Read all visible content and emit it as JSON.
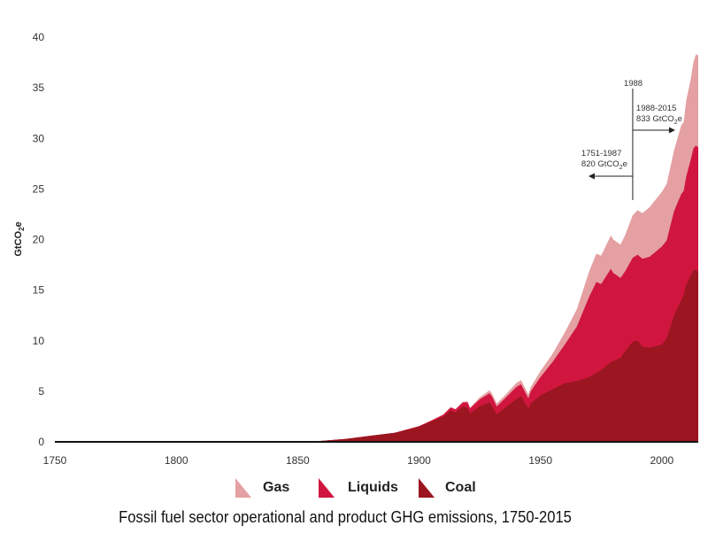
{
  "chart_data": {
    "type": "area",
    "stacked": true,
    "title": "Fossil fuel sector operational and product GHG emissions, 1750-2015",
    "xlabel": "",
    "ylabel": "GtCO2e",
    "ylabel_parts": {
      "base": "GtCO",
      "sub": "2",
      "tail": "e"
    },
    "xlim": [
      1750,
      2015
    ],
    "ylim": [
      0,
      40
    ],
    "xticks": [
      1750,
      1800,
      1850,
      1900,
      1950,
      2000
    ],
    "yticks": [
      0,
      5,
      10,
      15,
      20,
      25,
      30,
      35,
      40
    ],
    "grid": false,
    "legend_position": "bottom",
    "x": [
      1750,
      1800,
      1850,
      1860,
      1870,
      1880,
      1890,
      1900,
      1905,
      1910,
      1913,
      1915,
      1918,
      1920,
      1921,
      1925,
      1929,
      1930,
      1932,
      1935,
      1940,
      1942,
      1945,
      1946,
      1950,
      1955,
      1960,
      1965,
      1970,
      1973,
      1975,
      1979,
      1980,
      1983,
      1985,
      1988,
      1990,
      1992,
      1995,
      2000,
      2002,
      2005,
      2008,
      2009,
      2010,
      2012,
      2013,
      2014,
      2015
    ],
    "series": [
      {
        "name": "Coal",
        "color": "#9b1620",
        "values": [
          0,
          0,
          0,
          0.1,
          0.3,
          0.6,
          0.9,
          1.5,
          2.0,
          2.5,
          3.1,
          2.9,
          3.5,
          3.4,
          2.8,
          3.5,
          3.9,
          3.6,
          2.7,
          3.3,
          4.2,
          4.5,
          3.3,
          3.8,
          4.6,
          5.2,
          5.8,
          6.0,
          6.4,
          6.8,
          7.1,
          7.9,
          8.0,
          8.3,
          9.0,
          9.9,
          10.0,
          9.4,
          9.3,
          9.6,
          10.2,
          12.5,
          14.0,
          14.5,
          15.5,
          16.5,
          17.0,
          17.0,
          16.8
        ]
      },
      {
        "name": "Liquids",
        "color": "#d0163f",
        "values": [
          0,
          0,
          0,
          0,
          0,
          0,
          0,
          0.05,
          0.1,
          0.2,
          0.3,
          0.3,
          0.4,
          0.5,
          0.5,
          0.7,
          0.9,
          0.9,
          0.8,
          0.9,
          1.2,
          1.2,
          1.0,
          1.2,
          1.8,
          2.7,
          3.8,
          5.4,
          7.9,
          9.0,
          8.5,
          9.2,
          8.7,
          7.9,
          7.9,
          8.3,
          8.5,
          8.7,
          9.0,
          9.7,
          9.7,
          10.3,
          10.5,
          10.3,
          10.7,
          11.5,
          12.0,
          12.3,
          12.3
        ]
      },
      {
        "name": "Gas",
        "color": "#e4a0a2",
        "values": [
          0,
          0,
          0,
          0,
          0,
          0,
          0,
          0,
          0,
          0,
          0.05,
          0.05,
          0.05,
          0.1,
          0.1,
          0.2,
          0.3,
          0.3,
          0.3,
          0.3,
          0.4,
          0.4,
          0.4,
          0.4,
          0.6,
          0.8,
          1.2,
          1.7,
          2.5,
          2.8,
          2.8,
          3.3,
          3.3,
          3.3,
          3.6,
          4.2,
          4.4,
          4.5,
          4.9,
          5.4,
          5.6,
          6.0,
          6.8,
          6.8,
          7.5,
          8.0,
          8.5,
          9.0,
          9.1
        ]
      }
    ],
    "annotations": {
      "marker_year": 1988,
      "marker_label": "1988",
      "left": {
        "period": "1751-1987",
        "amount": "820 GtCO",
        "sub": "2",
        "tail": "e"
      },
      "right": {
        "period": "1988-2015",
        "amount": "833 GtCO",
        "sub": "2",
        "tail": "e"
      }
    }
  }
}
